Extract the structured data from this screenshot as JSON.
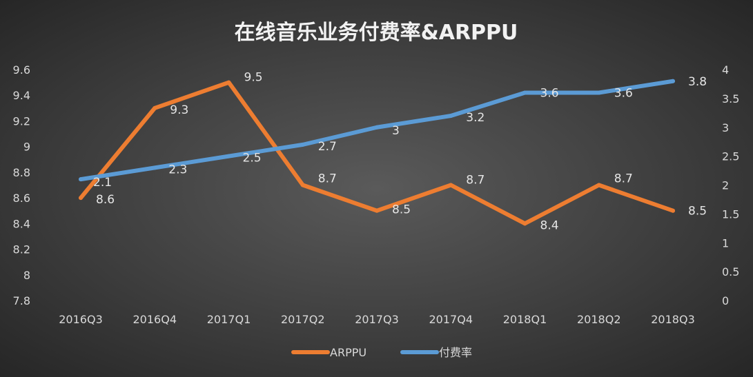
{
  "chart_data": {
    "type": "line",
    "title": "在线音乐业务付费率&ARPPU",
    "categories": [
      "2016Q3",
      "2016Q4",
      "2017Q1",
      "2017Q2",
      "2017Q3",
      "2017Q4",
      "2018Q1",
      "2018Q2",
      "2018Q3"
    ],
    "series": [
      {
        "name": "ARPPU",
        "axis": "left",
        "color": "#ED7D31",
        "values": [
          8.6,
          9.3,
          9.5,
          8.7,
          8.5,
          8.7,
          8.4,
          8.7,
          8.5
        ]
      },
      {
        "name": "付费率",
        "axis": "right",
        "color": "#5B9BD5",
        "values": [
          2.1,
          2.3,
          2.5,
          2.7,
          3,
          3.2,
          3.6,
          3.6,
          3.8
        ]
      }
    ],
    "y_left": {
      "range": [
        7.8,
        9.6
      ],
      "ticks": [
        "9.6",
        "9.4",
        "9.2",
        "9",
        "8.8",
        "8.6",
        "8.4",
        "8.2",
        "8",
        "7.8"
      ]
    },
    "y_right": {
      "range": [
        0,
        4
      ],
      "ticks": [
        "4",
        "3.5",
        "3",
        "2.5",
        "2",
        "1.5",
        "1",
        "0.5",
        "0"
      ]
    },
    "grid": false,
    "data_labels": true,
    "legend": "bottom"
  }
}
